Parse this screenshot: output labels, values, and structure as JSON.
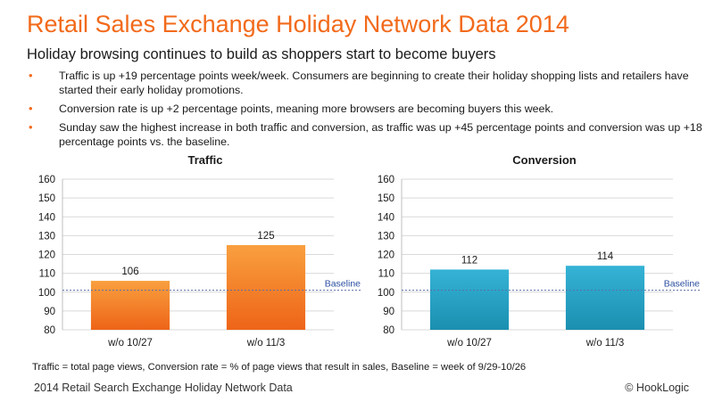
{
  "header": {
    "title": "Retail Sales Exchange Holiday Network Data 2014",
    "subtitle": "Holiday browsing continues to build as shoppers start to become buyers"
  },
  "bullets": [
    "Traffic is up +19 percentage points week/week. Consumers are beginning to create their holiday shopping lists and retailers have started their early holiday promotions.",
    "Conversion rate is up +2 percentage points, meaning more browsers are becoming buyers this week.",
    "Sunday saw the highest increase in both traffic and conversion, as traffic was up +45 percentage points and conversion was up +18 percentage points vs. the baseline."
  ],
  "chart_data": [
    {
      "type": "bar",
      "title": "Traffic",
      "categories": [
        "w/o 10/27",
        "w/o 11/3"
      ],
      "values": [
        106,
        125
      ],
      "ylim": [
        80,
        160
      ],
      "yticks": [
        80,
        90,
        100,
        110,
        120,
        130,
        140,
        150,
        160
      ],
      "baseline": 101,
      "baseline_label": "Baseline",
      "grid": true,
      "colors": {
        "bar_top": "#f9a03f",
        "bar_bottom": "#ee6418",
        "baseline": "#5a6fa8"
      }
    },
    {
      "type": "bar",
      "title": "Conversion",
      "categories": [
        "w/o 10/27",
        "w/o 11/3"
      ],
      "values": [
        112,
        114
      ],
      "ylim": [
        80,
        160
      ],
      "yticks": [
        80,
        90,
        100,
        110,
        120,
        130,
        140,
        150,
        160
      ],
      "baseline": 101,
      "baseline_label": "Baseline",
      "grid": true,
      "colors": {
        "bar_top": "#35b3d6",
        "bar_bottom": "#1b8fb0",
        "baseline": "#5a6fa8"
      }
    }
  ],
  "footnote": "Traffic = total page views, Conversion rate = % of page views that result in sales, Baseline = week of 9/29-10/26",
  "footer": {
    "left": "2014 Retail Search Exchange Holiday Network Data",
    "right": "© HookLogic"
  },
  "colors": {
    "accent": "#f26a1b"
  }
}
